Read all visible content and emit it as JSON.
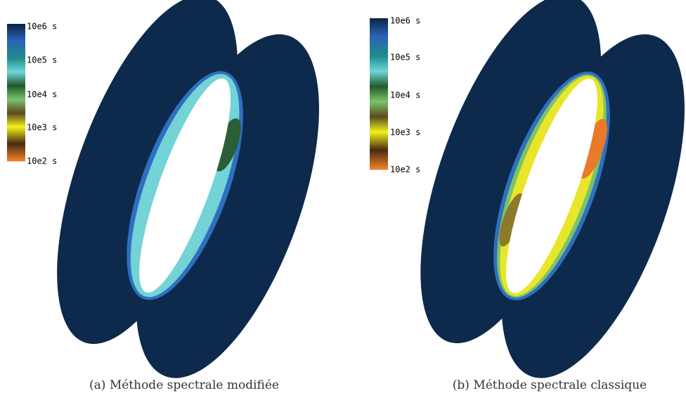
{
  "figures": [
    {
      "colorbar": {
        "labels": [
          "10e6 s",
          "10e5 s",
          "10e4 s",
          "10e3 s",
          "10e2 s"
        ]
      },
      "caption": {
        "label": "(a)",
        "text": "Méthode spectrale modifiée"
      }
    },
    {
      "colorbar": {
        "labels": [
          "10e6 s",
          "10e5 s",
          "10e4 s",
          "10e3 s",
          "10e2 s"
        ]
      },
      "caption": {
        "label": "(b)",
        "text": "Méthode spectrale classique"
      }
    }
  ]
}
